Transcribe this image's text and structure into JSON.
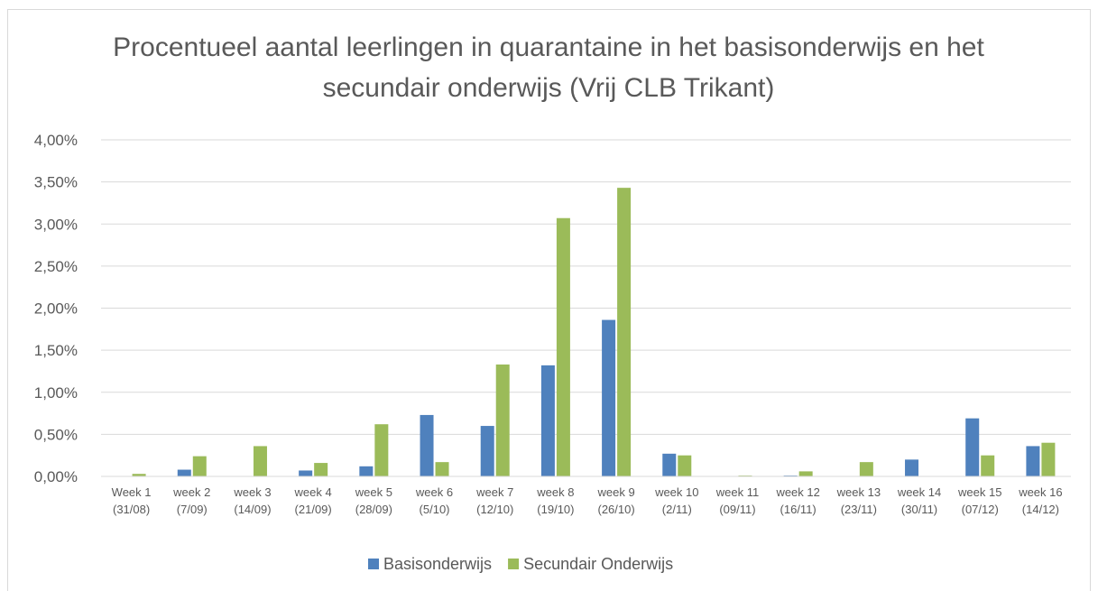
{
  "chart_data": {
    "type": "bar",
    "title": "Procentueel aantal leerlingen in quarantaine in het basisonderwijs en het secundair onderwijs (Vrij CLB Trikant)",
    "categories": [
      "Week 1 (31/08)",
      "week 2 (7/09)",
      "week 3 (14/09)",
      "week 4 (21/09)",
      "week 5 (28/09)",
      "week 6 (5/10)",
      "week 7 (12/10)",
      "week 8 (19/10)",
      "week 9 (26/10)",
      "week 10 (2/11)",
      "week 11 (09/11)",
      "week 12 (16/11)",
      "week 13 (23/11)",
      "week 14 (30/11)",
      "week 15 (07/12)",
      "week 16 (14/12)"
    ],
    "series": [
      {
        "name": "Basisonderwijs",
        "color": "#4f81bd",
        "values": [
          0,
          0.08,
          0,
          0.07,
          0.12,
          0.73,
          0.6,
          1.32,
          1.86,
          0.27,
          0,
          0.01,
          0,
          0.2,
          0.69,
          0.36
        ]
      },
      {
        "name": "Secundair Onderwijs",
        "color": "#9bbb59",
        "values": [
          0.03,
          0.24,
          0.36,
          0.16,
          0.62,
          0.17,
          1.33,
          3.07,
          3.43,
          0.25,
          0.01,
          0.06,
          0.17,
          0,
          0.25,
          0.4
        ]
      }
    ],
    "ylim": [
      0,
      4
    ],
    "yticks": [
      {
        "value": 0,
        "label": "0,00%"
      },
      {
        "value": 0.5,
        "label": "0,50%"
      },
      {
        "value": 1,
        "label": "1,00%"
      },
      {
        "value": 1.5,
        "label": "1,50%"
      },
      {
        "value": 2,
        "label": "2,00%"
      },
      {
        "value": 2.5,
        "label": "2,50%"
      },
      {
        "value": 3,
        "label": "3,00%"
      },
      {
        "value": 3.5,
        "label": "3,50%"
      },
      {
        "value": 4,
        "label": "4,00%"
      }
    ],
    "grid": true,
    "legend": "bottom"
  }
}
